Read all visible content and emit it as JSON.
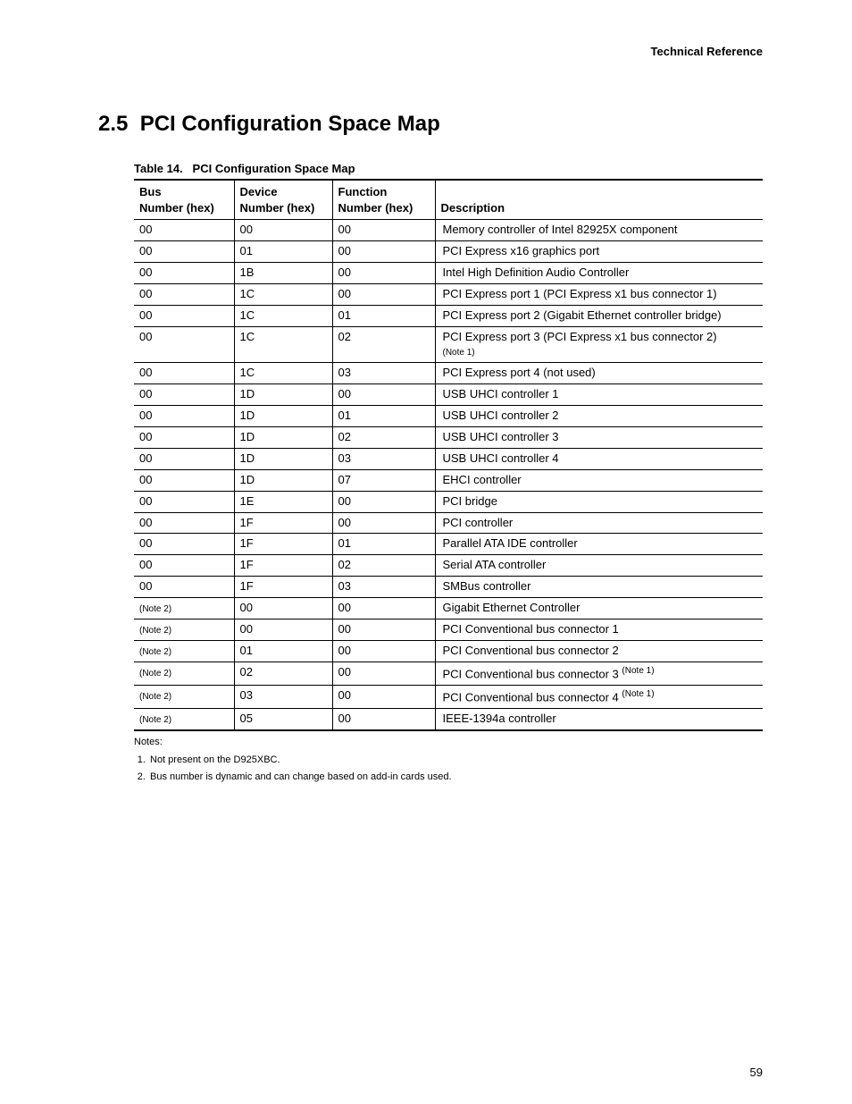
{
  "header": {
    "right": "Technical Reference"
  },
  "section": {
    "number": "2.5",
    "title": "PCI Configuration Space Map"
  },
  "table": {
    "caption_label": "Table 14.",
    "caption_title": "PCI Configuration Space Map",
    "columns": {
      "bus_l1": "Bus",
      "bus_l2": "Number (hex)",
      "dev_l1": "Device",
      "dev_l2": "Number (hex)",
      "fun_l1": "Function",
      "fun_l2": "Number (hex)",
      "desc": "Description"
    },
    "rows": [
      {
        "bus": "00",
        "dev": "00",
        "fun": "00",
        "desc": "Memory controller of Intel 82925X component"
      },
      {
        "bus": "00",
        "dev": "01",
        "fun": "00",
        "desc": "PCI Express x16 graphics port"
      },
      {
        "bus": "00",
        "dev": "1B",
        "fun": "00",
        "desc": "Intel High Definition Audio Controller"
      },
      {
        "bus": "00",
        "dev": "1C",
        "fun": "00",
        "desc": "PCI Express port 1 (PCI Express x1 bus connector 1)"
      },
      {
        "bus": "00",
        "dev": "1C",
        "fun": "01",
        "desc": "PCI Express port 2 (Gigabit Ethernet controller bridge)"
      },
      {
        "bus": "00",
        "dev": "1C",
        "fun": "02",
        "desc": "PCI Express port 3 (PCI Express x1 bus connector 2)",
        "desc_note": "(Note 1)"
      },
      {
        "bus": "00",
        "dev": "1C",
        "fun": "03",
        "desc": "PCI Express port 4 (not used)"
      },
      {
        "bus": "00",
        "dev": "1D",
        "fun": "00",
        "desc": "USB UHCI controller 1"
      },
      {
        "bus": "00",
        "dev": "1D",
        "fun": "01",
        "desc": "USB UHCI controller 2"
      },
      {
        "bus": "00",
        "dev": "1D",
        "fun": "02",
        "desc": "USB UHCI controller 3"
      },
      {
        "bus": "00",
        "dev": "1D",
        "fun": "03",
        "desc": "USB UHCI controller 4"
      },
      {
        "bus": "00",
        "dev": "1D",
        "fun": "07",
        "desc": "EHCI controller"
      },
      {
        "bus": "00",
        "dev": "1E",
        "fun": "00",
        "desc": "PCI bridge"
      },
      {
        "bus": "00",
        "dev": "1F",
        "fun": "00",
        "desc": "PCI controller"
      },
      {
        "bus": "00",
        "dev": "1F",
        "fun": "01",
        "desc": "Parallel ATA IDE controller"
      },
      {
        "bus": "00",
        "dev": "1F",
        "fun": "02",
        "desc": "Serial ATA controller"
      },
      {
        "bus": "00",
        "dev": "1F",
        "fun": "03",
        "desc": "SMBus controller"
      },
      {
        "bus_note": "(Note 2)",
        "dev": "00",
        "fun": "00",
        "desc": "Gigabit Ethernet Controller"
      },
      {
        "bus_note": "(Note 2)",
        "dev": "00",
        "fun": "00",
        "desc": "PCI Conventional bus connector 1"
      },
      {
        "bus_note": "(Note 2)",
        "dev": "01",
        "fun": "00",
        "desc": "PCI Conventional bus connector 2"
      },
      {
        "bus_note": "(Note 2)",
        "dev": "02",
        "fun": "00",
        "desc": "PCI Conventional bus connector 3",
        "desc_sup": "(Note 1)"
      },
      {
        "bus_note": "(Note 2)",
        "dev": "03",
        "fun": "00",
        "desc": "PCI Conventional bus connector 4",
        "desc_sup": "(Note 1)"
      },
      {
        "bus_note": "(Note 2)",
        "dev": "05",
        "fun": "00",
        "desc": "IEEE-1394a controller"
      }
    ]
  },
  "notes": {
    "label": "Notes:",
    "items": [
      "Not present on the D925XBC.",
      "Bus number is dynamic and can change based on add-in cards used."
    ]
  },
  "page_number": "59"
}
